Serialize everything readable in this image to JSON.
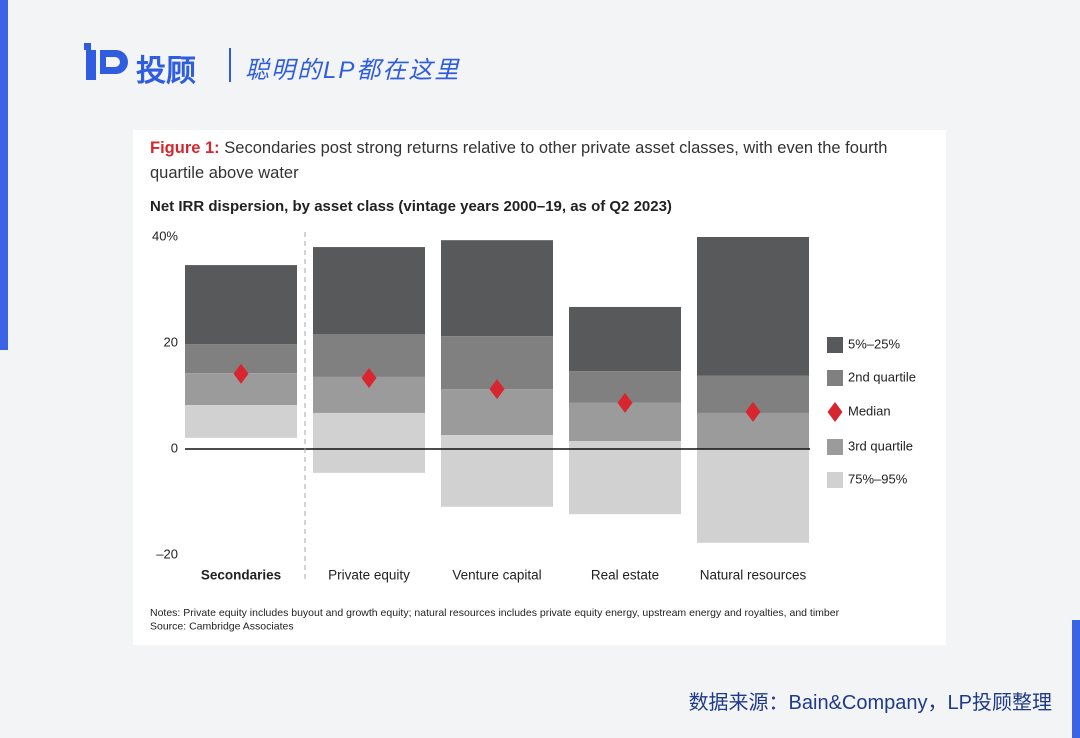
{
  "header": {
    "brand": "投顾",
    "slogan": "聪明的LP都在这里"
  },
  "chart_data": {
    "type": "floating_bar",
    "title_label": "Figure 1:",
    "title": "Secondaries post strong returns relative to other private asset classes, with even the fourth quartile above water",
    "subtitle": "Net IRR dispersion, by asset class (vintage years 2000–19, as of Q2 2023)",
    "categories": [
      "Secondaries",
      "Private equity",
      "Venture capital",
      "Real estate",
      "Natural resources"
    ],
    "highlight_index": 0,
    "series": [
      {
        "name": "5%–25%",
        "color": "#58595b",
        "values": [
          [
            19.8,
            34.7
          ],
          [
            21.7,
            38.1
          ],
          [
            21.3,
            39.4
          ],
          [
            14.7,
            26.8
          ],
          [
            13.8,
            40
          ]
        ]
      },
      {
        "name": "2nd quartile",
        "color": "#808080",
        "values": [
          [
            14.3,
            19.8
          ],
          [
            13.6,
            21.7
          ],
          [
            11.3,
            21.3
          ],
          [
            8.7,
            14.7
          ],
          [
            6.8,
            13.8
          ]
        ]
      },
      {
        "name": "Median",
        "color": "#d7262f",
        "marker": "diamond",
        "values": [
          14.2,
          13.4,
          11.3,
          8.7,
          7
        ]
      },
      {
        "name": "3rd quartile",
        "color": "#9b9b9b",
        "values": [
          [
            8.3,
            14.3
          ],
          [
            6.8,
            13.6
          ],
          [
            2.6,
            11.3
          ],
          [
            1.5,
            8.7
          ],
          [
            0,
            6.8
          ]
        ]
      },
      {
        "name": "75%–95%",
        "color": "#d1d1d2",
        "values": [
          [
            2.1,
            8.3
          ],
          [
            -4.5,
            6.8
          ],
          [
            -10.9,
            2.6
          ],
          [
            -12.3,
            1.5
          ],
          [
            -17.7,
            0
          ]
        ]
      }
    ],
    "ylim": [
      -20,
      40
    ],
    "yticks": [
      {
        "value": 40,
        "label": "40%"
      },
      20,
      0,
      {
        "value": -20,
        "label": "–20"
      }
    ],
    "notes": [
      "Notes: Private equity includes buyout and growth equity; natural resources includes private equity energy, upstream energy and royalties, and timber",
      "Source: Cambridge Associates"
    ]
  },
  "footer": "数据来源：Bain&Company，LP投顾整理"
}
